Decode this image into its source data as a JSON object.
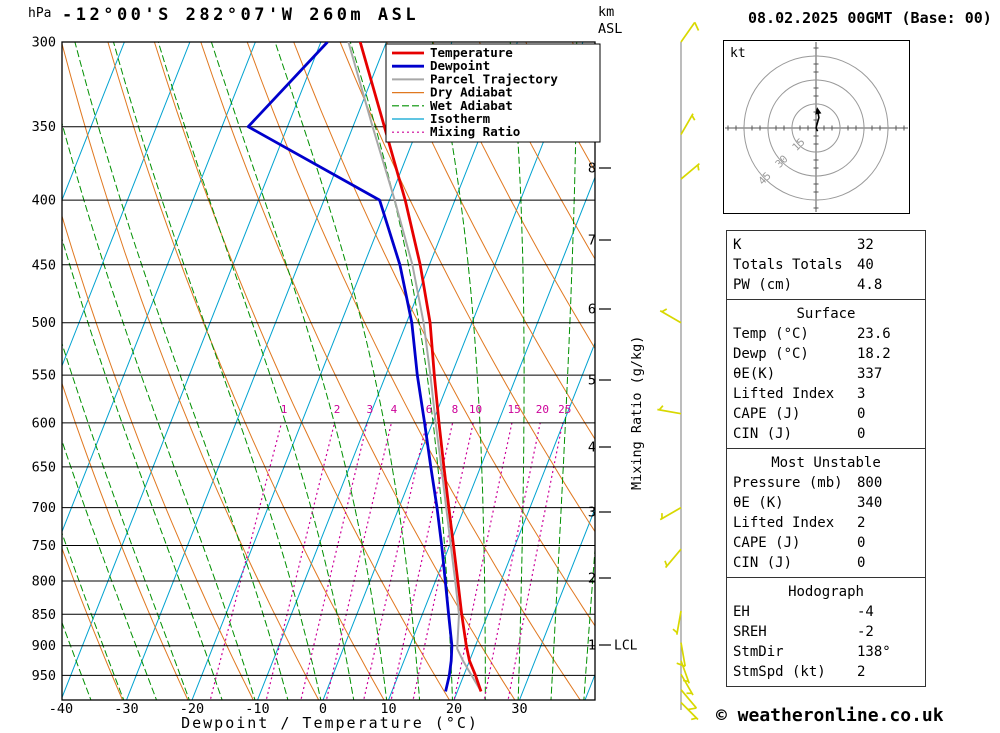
{
  "header": {
    "hpa_label": "hPa",
    "title": "-12°00'S 282°07'W 260m ASL",
    "km_label_line1": "km",
    "km_label_line2": "ASL",
    "date": "08.02.2025 00GMT (Base: 00)"
  },
  "legend": [
    {
      "label": "Temperature",
      "color_key": "temperature",
      "lw": 2.8,
      "dash": ""
    },
    {
      "label": "Dewpoint",
      "color_key": "dewpoint",
      "lw": 2.8,
      "dash": ""
    },
    {
      "label": "Parcel Trajectory",
      "color_key": "parcel",
      "lw": 2,
      "dash": ""
    },
    {
      "label": "Dry Adiabat",
      "color_key": "dry_adiabat",
      "lw": 1.2,
      "dash": ""
    },
    {
      "label": "Wet Adiabat",
      "color_key": "wet_adiabat",
      "lw": 1.2,
      "dash": "7 3"
    },
    {
      "label": "Isotherm",
      "color_key": "isotherm",
      "lw": 1.2,
      "dash": ""
    },
    {
      "label": "Mixing Ratio",
      "color_key": "mixing_ratio",
      "lw": 1.2,
      "dash": "2 3"
    }
  ],
  "axes": {
    "pressure_ticks": [
      300,
      350,
      400,
      450,
      500,
      550,
      600,
      650,
      700,
      750,
      800,
      850,
      900,
      950
    ],
    "temp_ticks": [
      -40,
      -30,
      -20,
      -10,
      0,
      10,
      20,
      30
    ],
    "xlabel": "Dewpoint / Temperature (°C)",
    "km_ticks": [
      8,
      7,
      6,
      5,
      4,
      3,
      2,
      1
    ],
    "mixing_ratio_axis_label": "Mixing Ratio (g/kg)",
    "mixing_ratio_values": [
      1,
      2,
      3,
      4,
      6,
      8,
      10,
      15,
      20,
      25
    ],
    "lcl_label": "LCL"
  },
  "chart_data": {
    "type": "line",
    "variant": "skew-t log-p sounding",
    "title": "-12°00'S 282°07'W 260m ASL",
    "xlabel": "Dewpoint / Temperature (°C)",
    "ylabel": "hPa",
    "x_range": [
      -40,
      40
    ],
    "pressure_range": [
      300,
      1000
    ],
    "series": [
      {
        "name": "Parcel Trajectory",
        "color_key": "parcel",
        "points": [
          [
            978,
            23.6
          ],
          [
            950,
            21.2
          ],
          [
            925,
            19.0
          ],
          [
            905,
            17.4
          ],
          [
            850,
            15.6
          ],
          [
            800,
            13.0
          ],
          [
            750,
            10.2
          ],
          [
            700,
            7.2
          ],
          [
            650,
            4.0
          ],
          [
            600,
            0.5
          ],
          [
            550,
            -3.2
          ],
          [
            500,
            -7.4
          ],
          [
            450,
            -12.6
          ],
          [
            400,
            -19.2
          ],
          [
            350,
            -27.0
          ],
          [
            300,
            -35.8
          ]
        ]
      },
      {
        "name": "Dewpoint",
        "color_key": "dewpoint",
        "points": [
          [
            978,
            18.2
          ],
          [
            950,
            17.8
          ],
          [
            925,
            17.2
          ],
          [
            900,
            16.4
          ],
          [
            850,
            14.0
          ],
          [
            800,
            11.5
          ],
          [
            750,
            8.8
          ],
          [
            700,
            5.8
          ],
          [
            650,
            2.4
          ],
          [
            600,
            -1.2
          ],
          [
            550,
            -5.2
          ],
          [
            500,
            -9.2
          ],
          [
            450,
            -14.5
          ],
          [
            400,
            -21.5
          ],
          [
            350,
            -46.0
          ],
          [
            300,
            -39.0
          ]
        ]
      },
      {
        "name": "Temperature",
        "color_key": "temperature",
        "points": [
          [
            978,
            23.6
          ],
          [
            950,
            21.8
          ],
          [
            925,
            20.0
          ],
          [
            900,
            18.6
          ],
          [
            850,
            16.0
          ],
          [
            800,
            13.4
          ],
          [
            750,
            10.6
          ],
          [
            700,
            7.6
          ],
          [
            650,
            4.4
          ],
          [
            600,
            1.0
          ],
          [
            550,
            -2.6
          ],
          [
            500,
            -6.4
          ],
          [
            450,
            -11.4
          ],
          [
            400,
            -17.6
          ],
          [
            350,
            -25.2
          ],
          [
            300,
            -34.0
          ]
        ]
      }
    ],
    "wind_barbs": [
      [
        300,
        35,
        10
      ],
      [
        355,
        30,
        5
      ],
      [
        385,
        50,
        5
      ],
      [
        500,
        300,
        5
      ],
      [
        590,
        280,
        5
      ],
      [
        700,
        240,
        5
      ],
      [
        755,
        220,
        5
      ],
      [
        845,
        190,
        5
      ],
      [
        895,
        170,
        10
      ],
      [
        925,
        160,
        5
      ],
      [
        948,
        150,
        5
      ],
      [
        975,
        140,
        10
      ],
      [
        998,
        135,
        5
      ]
    ]
  },
  "hodograph": {
    "unit_label": "kt",
    "rings": [
      15,
      30,
      45
    ],
    "trace_kt": [
      [
        1,
        -2
      ],
      [
        0,
        0
      ],
      [
        0.8,
        3
      ],
      [
        1.8,
        6.5
      ],
      [
        1.2,
        10
      ]
    ]
  },
  "table": {
    "sections": [
      {
        "title": "",
        "rows": [
          [
            "K",
            "32"
          ],
          [
            "Totals Totals",
            "40"
          ],
          [
            "PW (cm)",
            "4.8"
          ]
        ]
      },
      {
        "title": "Surface",
        "rows": [
          [
            "Temp (°C)",
            "23.6"
          ],
          [
            "Dewp (°C)",
            "18.2"
          ],
          [
            "θE(K)",
            "337"
          ],
          [
            "Lifted Index",
            "3"
          ],
          [
            "CAPE (J)",
            "0"
          ],
          [
            "CIN (J)",
            "0"
          ]
        ]
      },
      {
        "title": "Most Unstable",
        "rows": [
          [
            "Pressure (mb)",
            "800"
          ],
          [
            "θE (K)",
            "340"
          ],
          [
            "Lifted Index",
            "2"
          ],
          [
            "CAPE (J)",
            "0"
          ],
          [
            "CIN (J)",
            "0"
          ]
        ]
      },
      {
        "title": "Hodograph",
        "rows": [
          [
            "EH",
            "-4"
          ],
          [
            "SREH",
            "-2"
          ],
          [
            "StmDir",
            "138°"
          ],
          [
            "StmSpd (kt)",
            "2"
          ]
        ]
      }
    ]
  },
  "footer": {
    "copyright": "© weatheronline.co.uk"
  },
  "colors": {
    "temperature": "#e60000",
    "dewpoint": "#0000cc",
    "parcel": "#a8a8a8",
    "dry_adiabat": "#e07820",
    "wet_adiabat": "#009000",
    "isotherm": "#00a2d0",
    "mixing_ratio": "#cc0099",
    "wind_barb": "#d8d800",
    "axis": "#000000"
  }
}
